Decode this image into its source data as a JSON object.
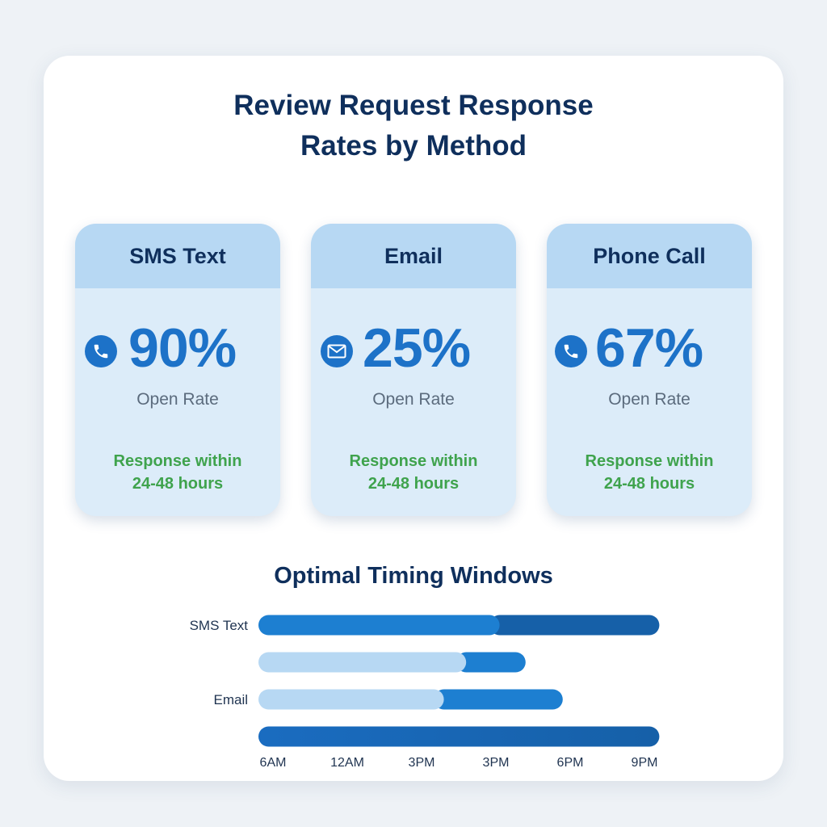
{
  "title_lines": [
    "Review Request Response",
    "Rates by Method"
  ],
  "cards": [
    {
      "method": "SMS Text",
      "icon": "phone-icon",
      "value": "90%",
      "metric_label": "Open Rate",
      "response_lines": [
        "Response within",
        "24-48 hours"
      ]
    },
    {
      "method": "Email",
      "icon": "envelope-icon",
      "value": "25%",
      "metric_label": "Open Rate",
      "response_lines": [
        "Response within",
        "24-48 hours"
      ]
    },
    {
      "method": "Phone Call",
      "icon": "phone-icon",
      "value": "67%",
      "metric_label": "Open Rate",
      "response_lines": [
        "Response within",
        "24-48 hours"
      ]
    }
  ],
  "colors": {
    "title": "#0f2f5c",
    "accent": "#1d72c8",
    "accent_dark": "#1660a8",
    "light_blue": "#b7d8f3",
    "card_bg": "#dcecf9",
    "response_green": "#3fa34d"
  },
  "chart_data": {
    "type": "bar",
    "orientation": "horizontal",
    "title": "Optimal Timing Windows",
    "x_tick_labels": [
      "6AM",
      "12AM",
      "3PM",
      "3PM",
      "6PM",
      "9PM"
    ],
    "x_range": [
      0,
      5
    ],
    "rows": [
      {
        "label": "SMS Text",
        "segments": [
          {
            "start": 0,
            "end": 3.05,
            "shade": "medium"
          },
          {
            "start": 3.05,
            "end": 5.2,
            "shade": "dark"
          }
        ]
      },
      {
        "label": "",
        "segments": [
          {
            "start": 0,
            "end": 2.6,
            "shade": "light"
          },
          {
            "start": 2.6,
            "end": 3.4,
            "shade": "medium"
          }
        ]
      },
      {
        "label": "Email",
        "segments": [
          {
            "start": 0,
            "end": 2.3,
            "shade": "light"
          },
          {
            "start": 2.3,
            "end": 3.9,
            "shade": "medium"
          }
        ]
      },
      {
        "label": "",
        "segments": [
          {
            "start": 0,
            "end": 5.2,
            "shade": "medium_to_dark"
          }
        ]
      }
    ]
  }
}
